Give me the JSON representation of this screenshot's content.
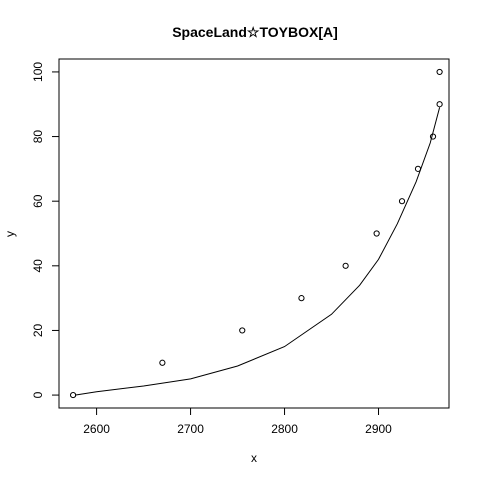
{
  "chart_data": {
    "type": "scatter",
    "title": "SpaceLand☆TOYBOX[A]",
    "xlabel": "x",
    "ylabel": "y",
    "xlim": [
      2560,
      2975
    ],
    "ylim": [
      -4,
      104
    ],
    "x_ticks": [
      2600,
      2700,
      2800,
      2900
    ],
    "y_ticks": [
      0,
      20,
      40,
      60,
      80,
      100
    ],
    "grid": false,
    "legend": "none",
    "points": {
      "x": [
        2575,
        2670,
        2755,
        2818,
        2865,
        2898,
        2925,
        2942,
        2958,
        2965,
        2965
      ],
      "y": [
        0,
        10,
        20,
        30,
        40,
        50,
        60,
        70,
        80,
        90,
        100
      ]
    },
    "fitted_curve": {
      "x": [
        2577,
        2600,
        2650,
        2700,
        2750,
        2800,
        2850,
        2880,
        2900,
        2920,
        2940,
        2955,
        2965
      ],
      "y": [
        0,
        1,
        2.8,
        5,
        9,
        15,
        25,
        34,
        42,
        53,
        66,
        78,
        89
      ]
    }
  }
}
